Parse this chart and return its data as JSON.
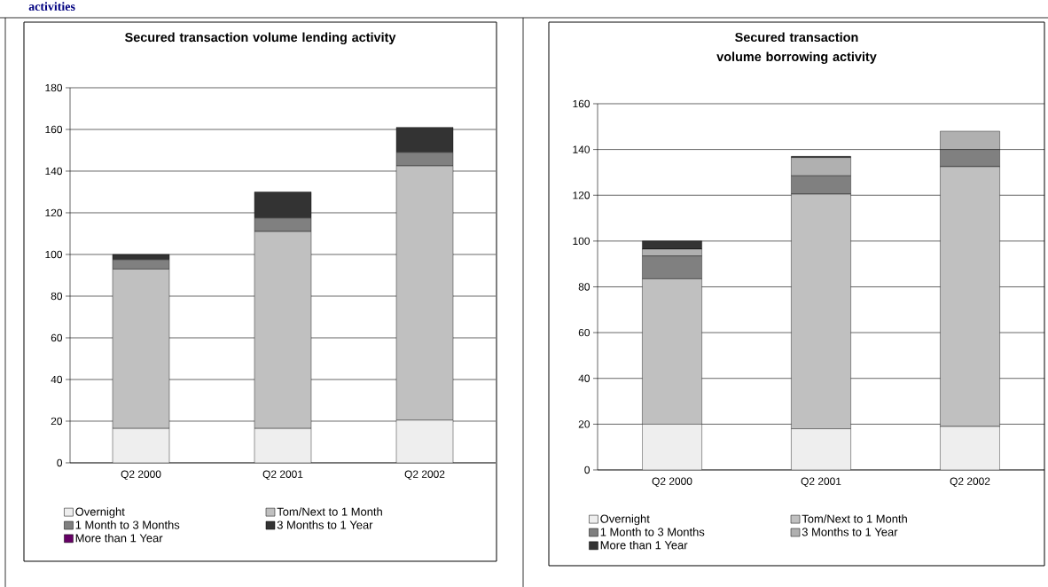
{
  "chart_data": [
    {
      "type": "bar",
      "title": "Secured transaction volume lending activity",
      "annotations": [
        "activities"
      ],
      "stacked": true,
      "legend": "bottom",
      "grid": "y",
      "categories": [
        "Q2 2000",
        "Q2 2001",
        "Q2 2002"
      ],
      "ylim": [
        0,
        180
      ],
      "yticks": [
        0,
        20,
        40,
        60,
        80,
        100,
        120,
        140,
        160,
        180
      ],
      "series": [
        {
          "name": "Overnight",
          "color": "#eeeeee",
          "values": [
            16.5,
            16.5,
            20.5
          ]
        },
        {
          "name": "Tom/Next  to 1 Month",
          "color": "#c0c0c0",
          "values": [
            76.5,
            94.5,
            122
          ]
        },
        {
          "name": "1 Month to 3 Months",
          "color": "#808080",
          "values": [
            4.5,
            6.5,
            6.5
          ]
        },
        {
          "name": "3 Months to 1 Year",
          "color": "#333333",
          "values": [
            2.5,
            12.5,
            12
          ]
        },
        {
          "name": "More than 1 Year",
          "color": "#660066",
          "values": [
            0,
            0,
            0
          ]
        }
      ]
    },
    {
      "type": "bar",
      "title": "Secured transaction volume borrowing activity",
      "stacked": true,
      "legend": "bottom",
      "grid": "y",
      "categories": [
        "Q2 2000",
        "Q2 2001",
        "Q2 2002"
      ],
      "ylim": [
        0,
        160
      ],
      "yticks": [
        0,
        20,
        40,
        60,
        80,
        100,
        120,
        140,
        160
      ],
      "series": [
        {
          "name": "Overnight",
          "color": "#eeeeee",
          "values": [
            20,
            18,
            19
          ]
        },
        {
          "name": "Tom/Next  to 1 Month",
          "color": "#c0c0c0",
          "values": [
            63.5,
            102.5,
            113.5
          ]
        },
        {
          "name": "1 Month to 3 Months",
          "color": "#808080",
          "values": [
            10,
            8,
            7.5
          ]
        },
        {
          "name": "3 Months to 1 Year",
          "color": "#b0b0b0",
          "values": [
            3,
            8,
            8
          ]
        },
        {
          "name": "More than 1 Year",
          "color": "#333333",
          "values": [
            3.5,
            0.5,
            0
          ]
        }
      ]
    }
  ]
}
